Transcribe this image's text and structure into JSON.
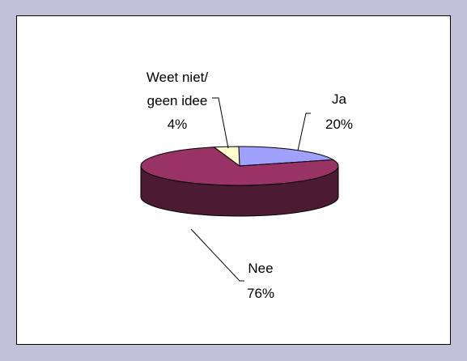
{
  "chart_data": {
    "type": "pie",
    "three_d": true,
    "slices": [
      {
        "name": "Ja",
        "value": 20,
        "label_pct": "20%",
        "top_color": "#a0a0ff",
        "side_color": "#6a6ab0"
      },
      {
        "name": "Nee",
        "value": 76,
        "label_pct": "76%",
        "top_color": "#993366",
        "side_color": "#4d1a33"
      },
      {
        "name": "Weet niet/ geen idee",
        "label_lines": [
          "Weet niet/",
          "geen idee"
        ],
        "value": 4,
        "label_pct": "4%",
        "top_color": "#ffffcc",
        "side_color": "#b3b38f"
      }
    ],
    "legend": "none",
    "grid": false
  },
  "colors": {
    "background": "#c0c0d8",
    "plot_area": "#ffffff",
    "border": "#000000"
  }
}
